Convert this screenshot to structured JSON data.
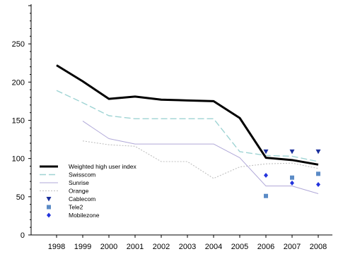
{
  "chart_data": {
    "type": "line",
    "x": [
      1998,
      1999,
      2000,
      2001,
      2002,
      2003,
      2004,
      2005,
      2006,
      2007,
      2008
    ],
    "xlim": [
      1998,
      2008
    ],
    "ylim": [
      0,
      300
    ],
    "yticks": [
      0,
      50,
      100,
      150,
      200,
      250
    ],
    "grid": false,
    "legend_position": "lower-left",
    "series": [
      {
        "name": "Weighted high user index",
        "kind": "line",
        "color": "#000000",
        "style": "solid-thick",
        "values": [
          222,
          201,
          178,
          181,
          177,
          176,
          175,
          153,
          101,
          98,
          92
        ]
      },
      {
        "name": "Swisscom",
        "kind": "line",
        "color": "#9fd4d4",
        "style": "dashed",
        "values": [
          189,
          173,
          156,
          152,
          152,
          152,
          152,
          109,
          104,
          103,
          96
        ]
      },
      {
        "name": "Sunrise",
        "kind": "line",
        "color": "#b0a8d8",
        "style": "solid-thin",
        "values": [
          null,
          149,
          126,
          119,
          119,
          119,
          119,
          101,
          64,
          64,
          54
        ]
      },
      {
        "name": "Orange",
        "kind": "line",
        "color": "#c0c0c0",
        "style": "dotted",
        "values": [
          null,
          123,
          118,
          116,
          96,
          96,
          74,
          89,
          93,
          94,
          87
        ]
      },
      {
        "name": "Cablecom",
        "kind": "marker",
        "color": "#1a2f9c",
        "marker": "triangle-down",
        "values": [
          null,
          null,
          null,
          null,
          null,
          null,
          null,
          null,
          109,
          109,
          109
        ]
      },
      {
        "name": "Tele2",
        "kind": "marker",
        "color": "#5b8bc6",
        "marker": "square",
        "values": [
          null,
          null,
          null,
          null,
          null,
          null,
          null,
          null,
          51,
          75,
          80
        ]
      },
      {
        "name": "Mobilezone",
        "kind": "marker",
        "color": "#2233dd",
        "marker": "diamond",
        "values": [
          null,
          null,
          null,
          null,
          null,
          null,
          null,
          null,
          78,
          68,
          66
        ]
      }
    ]
  }
}
